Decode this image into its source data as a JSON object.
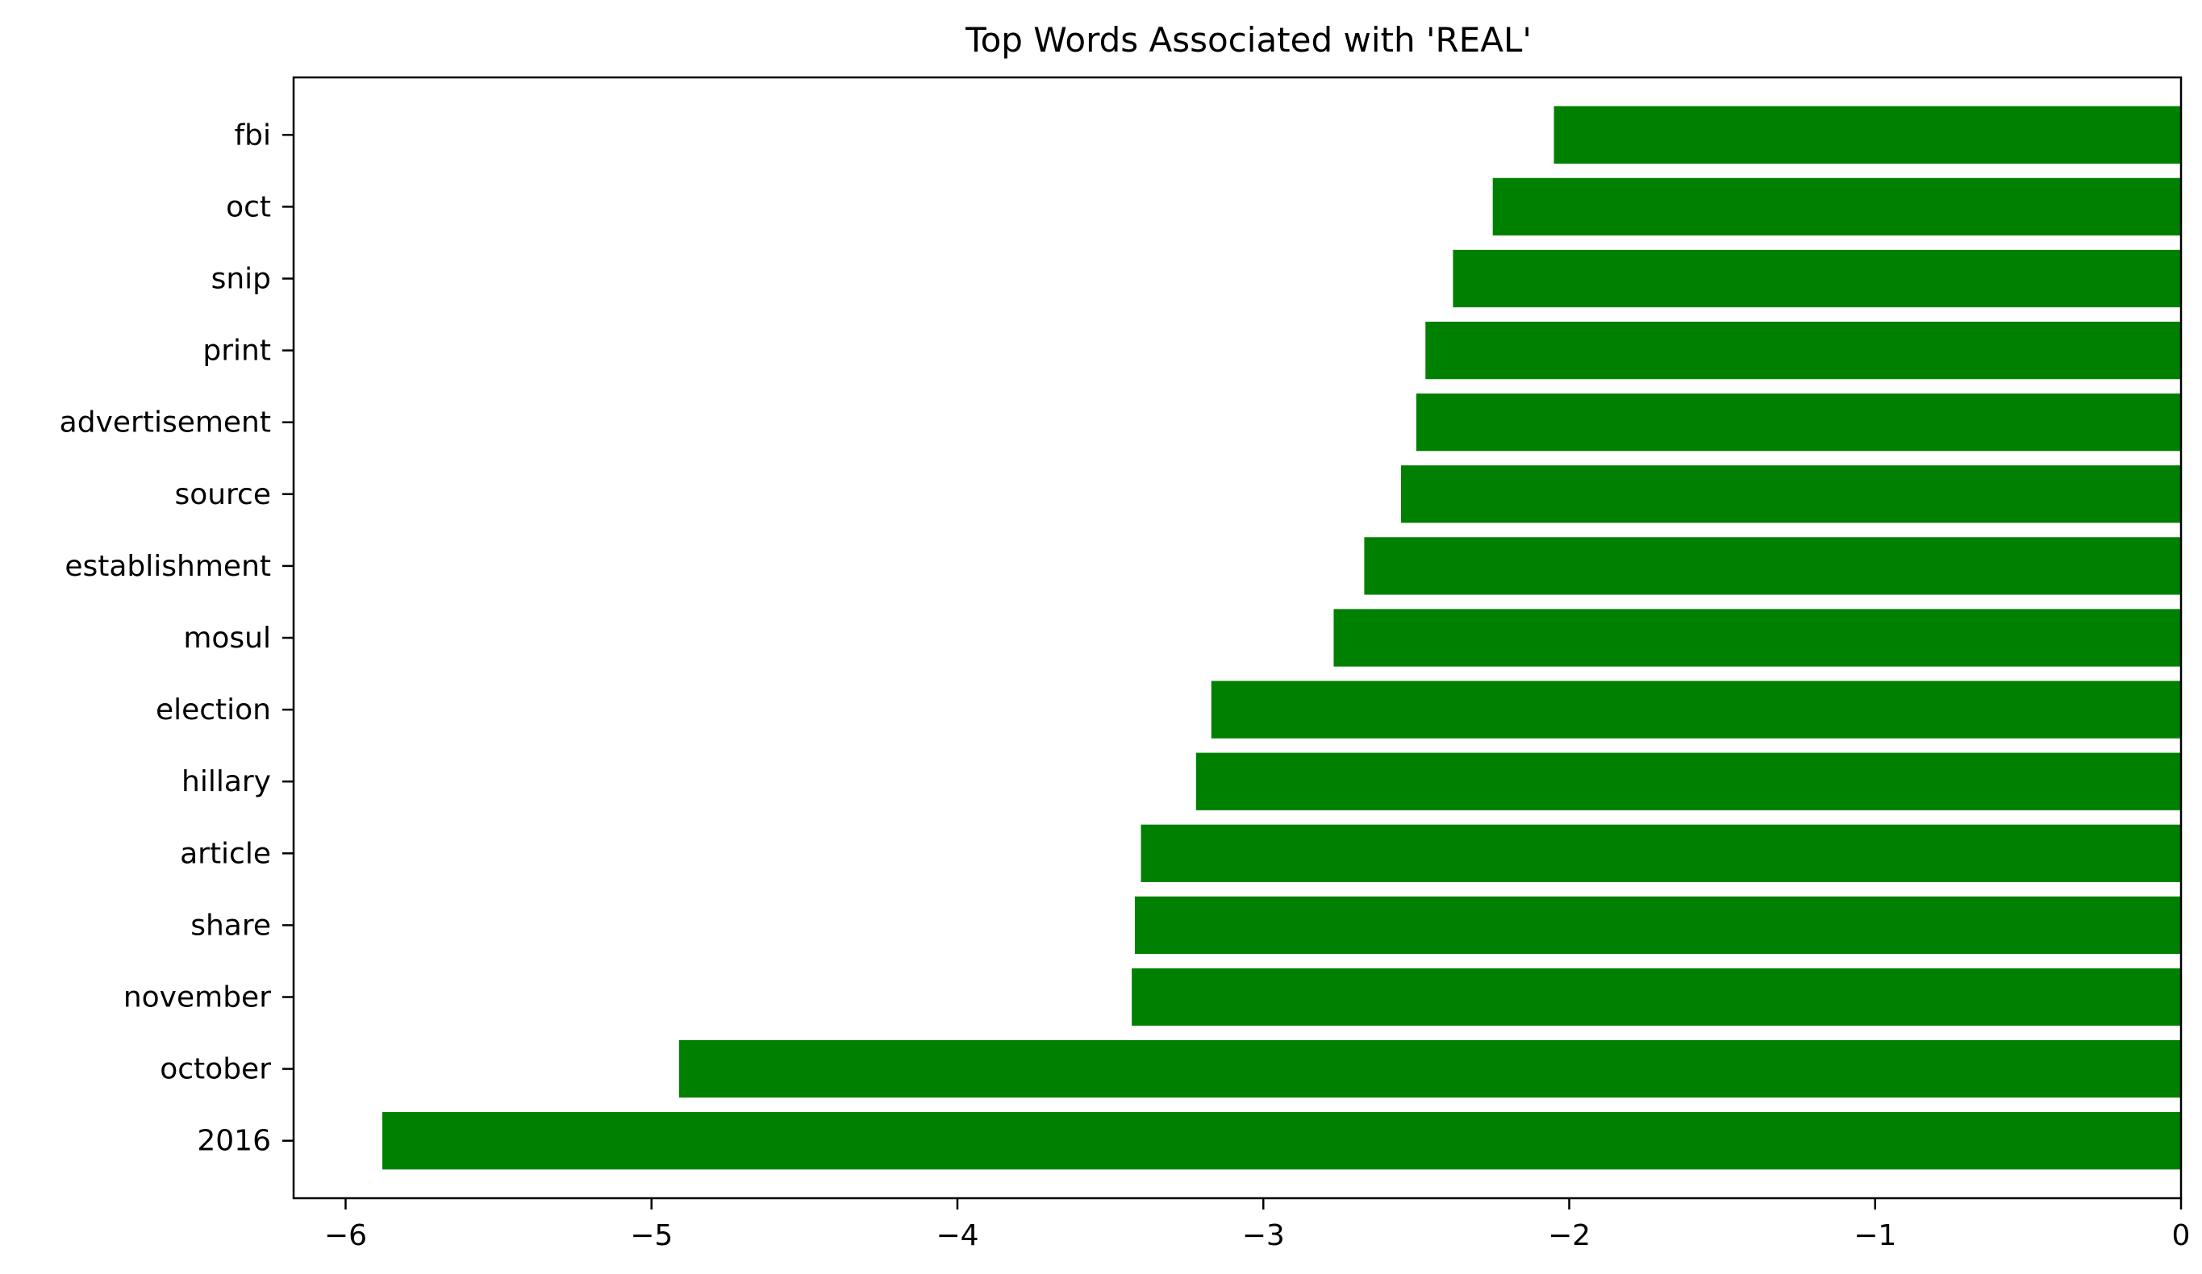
{
  "chart_data": {
    "type": "bar",
    "orientation": "horizontal",
    "title": "Top Words Associated with 'REAL'",
    "xlabel": "",
    "ylabel": "",
    "categories": [
      "2016",
      "october",
      "november",
      "share",
      "article",
      "hillary",
      "election",
      "mosul",
      "establishment",
      "source",
      "advertisement",
      "print",
      "snip",
      "oct",
      "fbi"
    ],
    "values": [
      -5.88,
      -4.91,
      -3.43,
      -3.42,
      -3.4,
      -3.22,
      -3.17,
      -2.77,
      -2.67,
      -2.55,
      -2.5,
      -2.47,
      -2.38,
      -2.25,
      -2.05
    ],
    "xlim": [
      -6.17,
      0
    ],
    "xticks": [
      -6,
      -5,
      -4,
      -3,
      -2,
      -1,
      0
    ],
    "xtick_labels": [
      "−6",
      "−5",
      "−4",
      "−3",
      "−2",
      "−1",
      "0"
    ],
    "bar_color": "#008000",
    "grid": false,
    "legend": "none"
  }
}
